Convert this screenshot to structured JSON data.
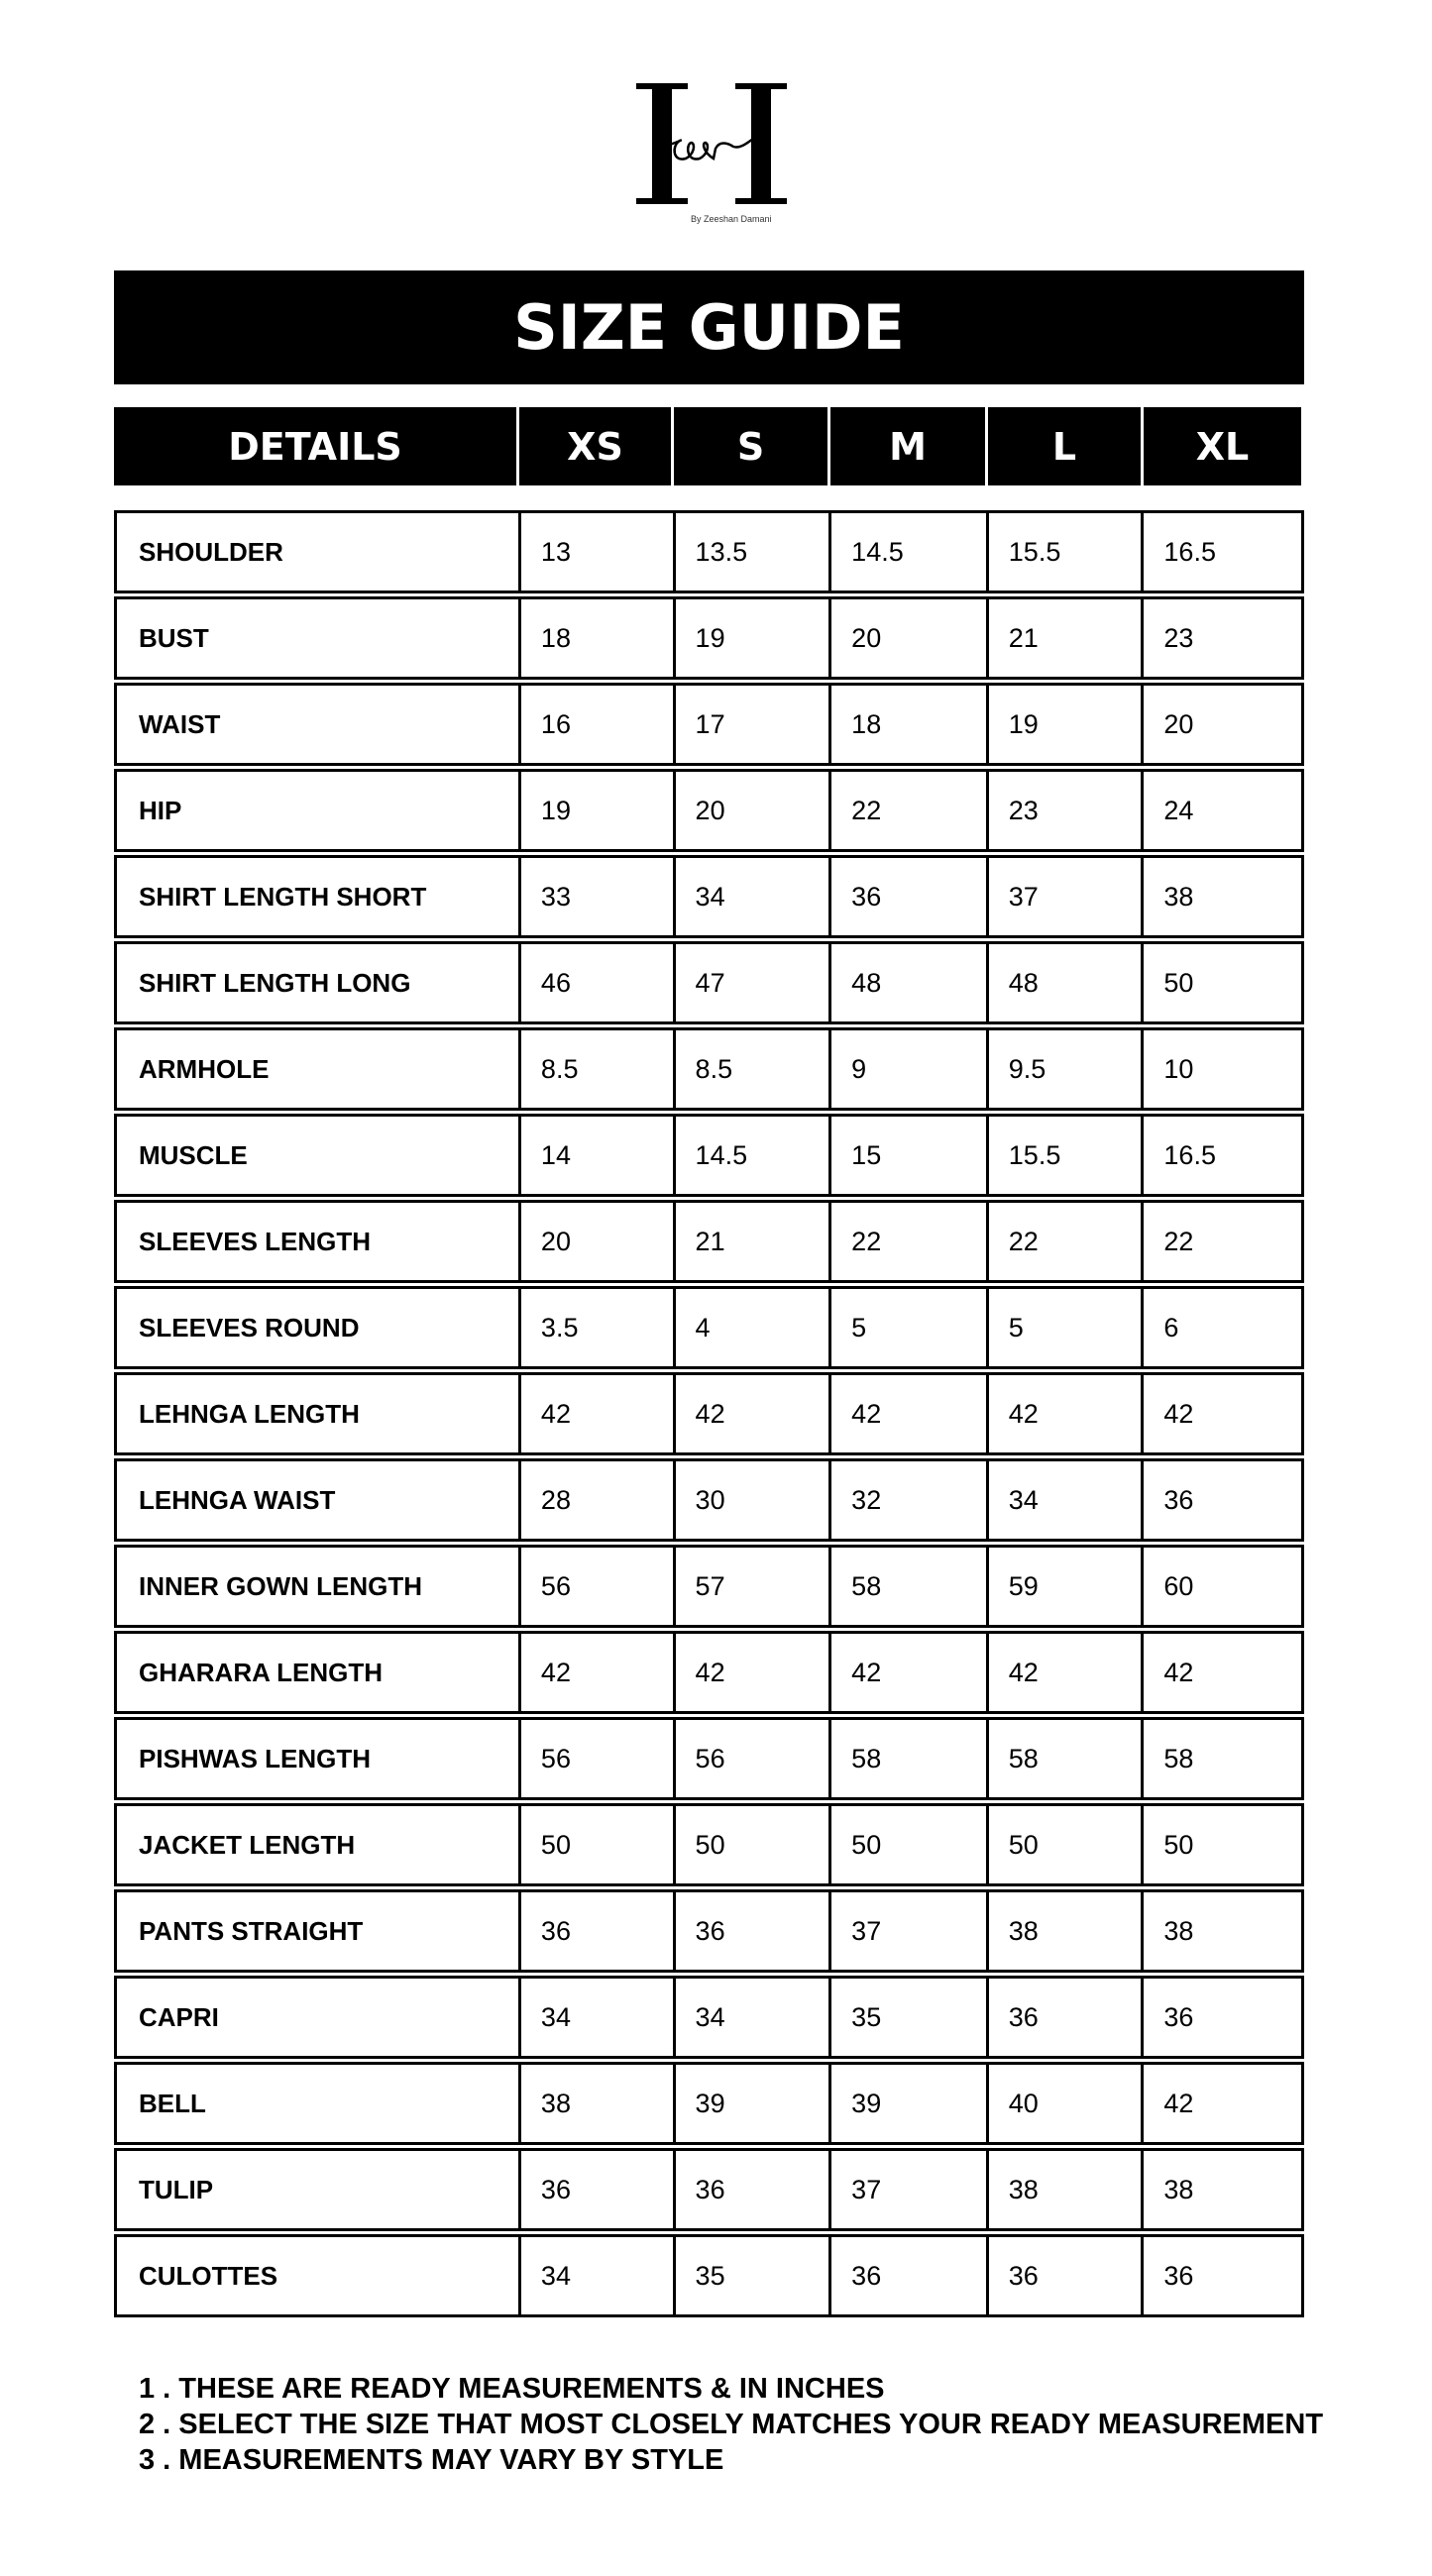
{
  "logo": {
    "main": "H",
    "script": "eer",
    "tagline": "By Zeeshan Damani"
  },
  "title": "SIZE GUIDE",
  "columns": [
    "DETAILS",
    "XS",
    "S",
    "M",
    "L",
    "XL"
  ],
  "rows": [
    [
      "SHOULDER",
      "13",
      "13.5",
      "14.5",
      "15.5",
      "16.5"
    ],
    [
      "BUST",
      "18",
      "19",
      "20",
      "21",
      "23"
    ],
    [
      "WAIST",
      "16",
      "17",
      "18",
      "19",
      "20"
    ],
    [
      "HIP",
      "19",
      "20",
      "22",
      "23",
      "24"
    ],
    [
      "SHIRT LENGTH SHORT",
      "33",
      "34",
      "36",
      "37",
      "38"
    ],
    [
      "SHIRT LENGTH LONG",
      "46",
      "47",
      "48",
      "48",
      "50"
    ],
    [
      "ARMHOLE",
      "8.5",
      "8.5",
      "9",
      "9.5",
      "10"
    ],
    [
      "MUSCLE",
      "14",
      "14.5",
      "15",
      "15.5",
      "16.5"
    ],
    [
      "SLEEVES LENGTH",
      "20",
      "21",
      "22",
      "22",
      "22"
    ],
    [
      "SLEEVES ROUND",
      "3.5",
      "4",
      "5",
      "5",
      "6"
    ],
    [
      "LEHNGA LENGTH",
      "42",
      "42",
      "42",
      "42",
      "42"
    ],
    [
      "LEHNGA WAIST",
      "28",
      "30",
      "32",
      "34",
      "36"
    ],
    [
      "INNER GOWN LENGTH",
      "56",
      "57",
      "58",
      "59",
      "60"
    ],
    [
      "GHARARA LENGTH",
      "42",
      "42",
      "42",
      "42",
      "42"
    ],
    [
      "PISHWAS LENGTH",
      "56",
      "56",
      "58",
      "58",
      "58"
    ],
    [
      "JACKET LENGTH",
      "50",
      "50",
      "50",
      "50",
      "50"
    ],
    [
      "PANTS STRAIGHT",
      "36",
      "36",
      "37",
      "38",
      "38"
    ],
    [
      "CAPRI",
      "34",
      "34",
      "35",
      "36",
      "36"
    ],
    [
      "BELL",
      "38",
      "39",
      "39",
      "40",
      "42"
    ],
    [
      "TULIP",
      "36",
      "36",
      "37",
      "38",
      "38"
    ],
    [
      "CULOTTES",
      "34",
      "35",
      "36",
      "36",
      "36"
    ]
  ],
  "notes": [
    "1 . THESE ARE READY MEASUREMENTS & IN INCHES",
    "2 . SELECT THE SIZE THAT MOST CLOSELY MATCHES YOUR READY MEASUREMENT",
    "3 . MEASUREMENTS MAY VARY BY STYLE"
  ]
}
